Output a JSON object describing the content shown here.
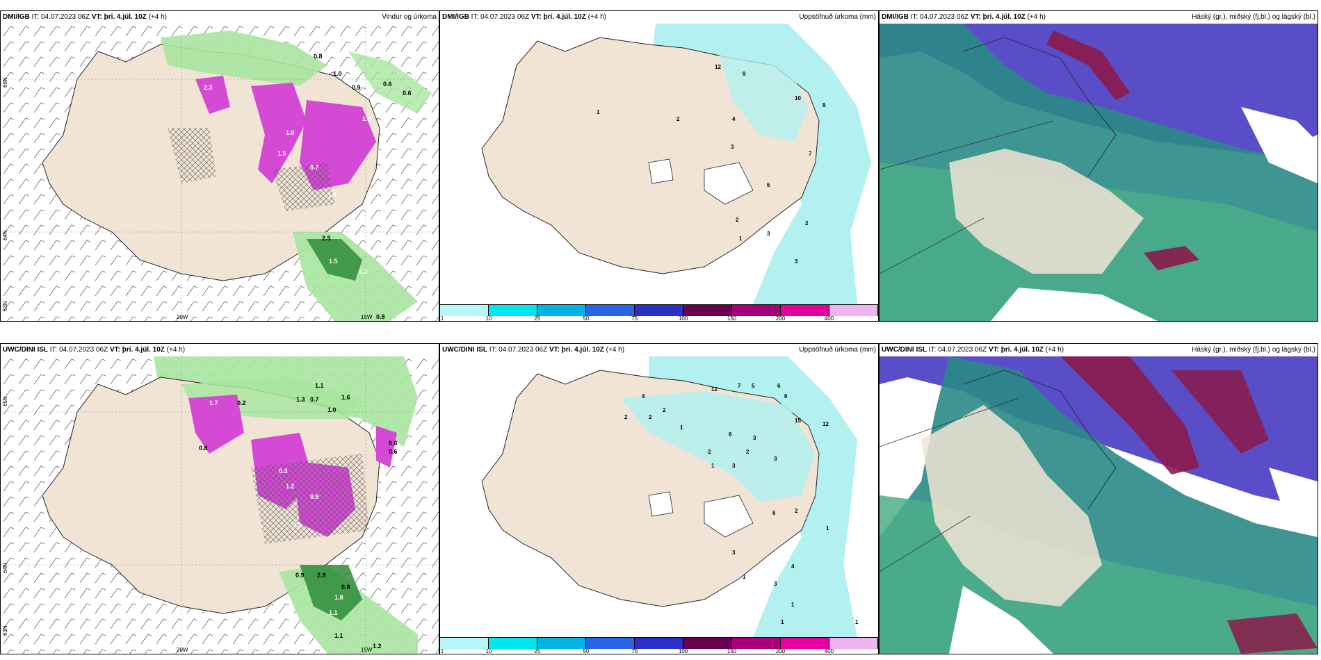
{
  "panels": {
    "top_left": {
      "model": "DMI/IGB",
      "it_label": "IT:",
      "it_value": "04.07.2023 06Z",
      "vt_label": "VT:",
      "vt_value": "þri. 4.júl. 10Z",
      "lead": "(+4 h)",
      "title_right": "Vindur og úrkoma",
      "lat_labels": [
        "65N",
        "64N",
        "63N"
      ],
      "lon_labels": [
        "20W",
        "15W"
      ],
      "values": [
        "0.8",
        "1.0",
        "0.9",
        "0.6",
        "0.6",
        "2.3",
        "1.5",
        "1.0",
        "1.5",
        "1.3",
        "0.7",
        "2.5",
        "1.5",
        "1.2",
        "0.8"
      ]
    },
    "top_mid": {
      "model": "DMI/IGB",
      "it_label": "IT:",
      "it_value": "04.07.2023 06Z",
      "vt_label": "VT:",
      "vt_value": "þri. 4.júl. 10Z",
      "lead": "(+4 h)",
      "title_right": "Uppsöfnuð úrkoma (mm)",
      "values": [
        "12",
        "9",
        "1",
        "2",
        "4",
        "10",
        "9",
        "3",
        "7",
        "6",
        "2",
        "3",
        "2",
        "1",
        "3"
      ]
    },
    "top_right": {
      "model": "DMI/IGB",
      "it_label": "IT:",
      "it_value": "04.07.2023 06Z",
      "vt_label": "VT:",
      "vt_value": "þri. 4.júl. 10Z",
      "lead": "(+4 h)",
      "title_right": "Háský (gr.), miðský (fj.bl.) og lágský (bl.)"
    },
    "bottom_left": {
      "model": "UWC/DINI ISL",
      "it_label": "IT:",
      "it_value": "04.07.2023 06Z",
      "vt_label": "VT:",
      "vt_value": "þri. 4.júl. 10Z",
      "lead": "(+4 h)",
      "title_right": "",
      "lat_labels": [
        "65N",
        "64N",
        "63N"
      ],
      "lon_labels": [
        "20W",
        "15W"
      ],
      "values": [
        "1.1",
        "1.3",
        "0.7",
        "1.6",
        "1.7",
        "0.2",
        "1.0",
        "0.6",
        "0.6",
        "0.8",
        "0.3",
        "1.2",
        "0.9",
        "3.2",
        "0.9",
        "2.9",
        "0.8",
        "1.8",
        "1.1",
        "1.1",
        "1.2"
      ]
    },
    "bottom_mid": {
      "model": "UWC/DINI ISL",
      "it_label": "IT:",
      "it_value": "04.07.2023 06Z",
      "vt_label": "VT:",
      "vt_value": "þri. 4.júl. 10Z",
      "lead": "(+4 h)",
      "title_right": "Uppsöfnuð úrkoma (mm)",
      "values": [
        "12",
        "7",
        "5",
        "6",
        "6",
        "4",
        "2",
        "2",
        "1",
        "2",
        "15",
        "12",
        "6",
        "3",
        "2",
        "1",
        "3",
        "2",
        "3",
        "6",
        "2",
        "1",
        "3",
        "4",
        "1",
        "3",
        "1",
        "1",
        "1"
      ]
    },
    "bottom_right": {
      "model": "UWC/DINI ISL",
      "it_label": "IT:",
      "it_value": "04.07.2023 06Z",
      "vt_label": "VT:",
      "vt_value": "þri. 4.júl. 10Z",
      "lead": "(+4 h)",
      "title_right": "Háský (gr.), miðský (fj.bl.) og lágský (bl.)"
    }
  },
  "colorbar": {
    "labels": [
      "1",
      "10",
      "25",
      "50",
      "75",
      "100",
      "150",
      "200",
      "400"
    ],
    "colors": [
      "#b7f7f7",
      "#00e6f0",
      "#00b4e6",
      "#2a64e6",
      "#2a30c8",
      "#6a0050",
      "#a8007a",
      "#e600a0",
      "#f0b4f0"
    ]
  },
  "colors": {
    "land": "#f1e4d4",
    "precip_light": "#b3f0f0",
    "green_light": "#a8e6a0",
    "green_dark": "#2e8b3a",
    "magenta": "#d44ad4",
    "cloud_high": "#5a4ec8",
    "cloud_mid": "#2a8a86",
    "cloud_low": "#4caf8a",
    "cloud_dark": "#8b1a4a"
  }
}
